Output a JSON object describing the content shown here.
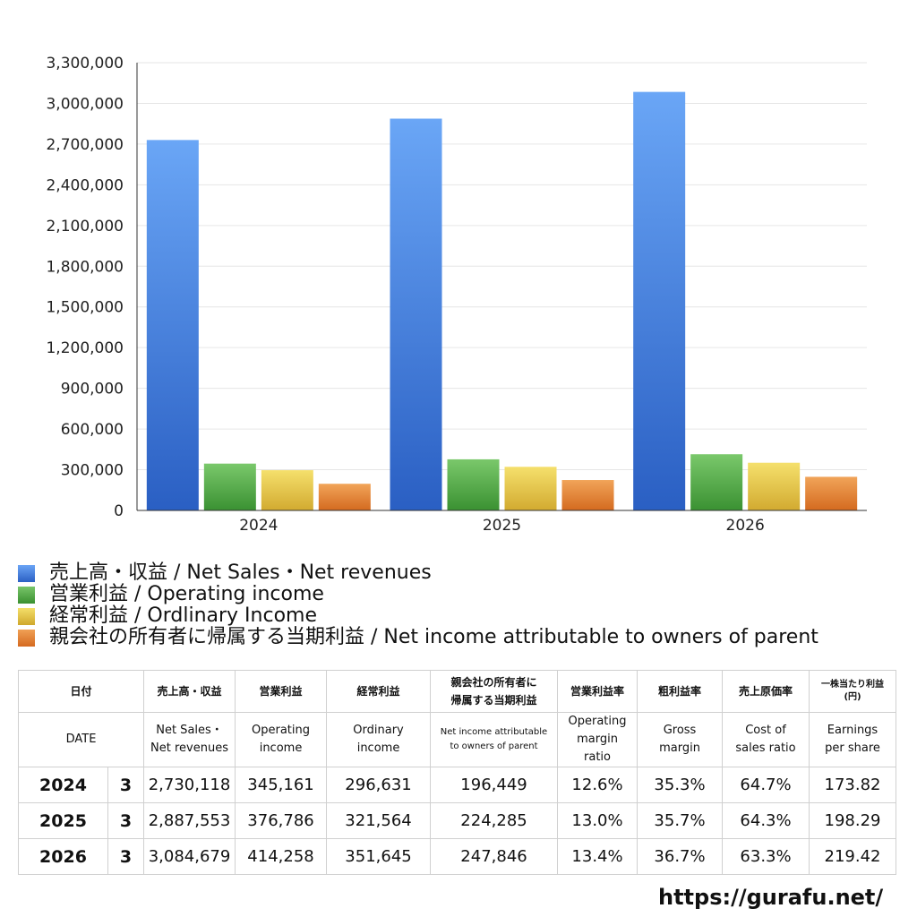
{
  "chart_data": {
    "type": "bar",
    "categories": [
      "2024",
      "2025",
      "2026"
    ],
    "y_ticks": [
      "3,300,000",
      "3,000,000",
      "2,700,000",
      "2,400,000",
      "2,100,000",
      "1,800,000",
      "1,500,000",
      "1,200,000",
      "900,000",
      "600,000",
      "300,000",
      "0"
    ],
    "ylim": [
      0,
      3300000
    ],
    "grid": true,
    "legend_position": "bottom",
    "series": [
      {
        "name": "売上高・収益 / Net Sales・Net revenues",
        "color": "#3a78e0",
        "values": [
          2730118,
          2887553,
          3084679
        ]
      },
      {
        "name": "営業利益 / Operating income",
        "color": "#4aa63e",
        "values": [
          345161,
          376786,
          414258
        ]
      },
      {
        "name": "経常利益 / Ordlinary Income",
        "color": "#e4c53a",
        "values": [
          296631,
          321564,
          351645
        ]
      },
      {
        "name": "親会社の所有者に帰属する当期利益 / Net income attributable to owners of parent",
        "color": "#e27b2e",
        "values": [
          196449,
          224285,
          247846
        ]
      }
    ]
  },
  "table": {
    "header_jp": {
      "date": "日付",
      "sales": "売上高・収益",
      "operating": "営業利益",
      "ordinary": "経常利益",
      "net_line1": "親会社の所有者に",
      "net_line2": "帰属する当期利益",
      "op_margin": "営業利益率",
      "gross": "粗利益率",
      "cost": "売上原価率",
      "eps_line1": "一株当たり利益",
      "eps_line2": "(円)"
    },
    "header_en": {
      "date": "DATE",
      "sales_line1": "Net Sales・",
      "sales_line2": "Net revenues",
      "operating_line1": "Operating",
      "operating_line2": "income",
      "ordinary_line1": "Ordinary",
      "ordinary_line2": "income",
      "net_line1": "Net income attributable",
      "net_line2": "to owners of parent",
      "op_margin_line1": "Operating",
      "op_margin_line2": "margin",
      "op_margin_line3": "ratio",
      "gross_line1": "Gross",
      "gross_line2": "margin",
      "cost_line1": "Cost of",
      "cost_line2": "sales ratio",
      "eps_line1": "Earnings",
      "eps_line2": "per share"
    },
    "rows": [
      {
        "year": "2024",
        "month": "3",
        "sales": "2,730,118",
        "operating": "345,161",
        "ordinary": "296,631",
        "net": "196,449",
        "op_margin": "12.6%",
        "gross": "35.3%",
        "cost": "64.7%",
        "eps": "173.82"
      },
      {
        "year": "2025",
        "month": "3",
        "sales": "2,887,553",
        "operating": "376,786",
        "ordinary": "321,564",
        "net": "224,285",
        "op_margin": "13.0%",
        "gross": "35.7%",
        "cost": "64.3%",
        "eps": "198.29"
      },
      {
        "year": "2026",
        "month": "3",
        "sales": "3,084,679",
        "operating": "414,258",
        "ordinary": "351,645",
        "net": "247,846",
        "op_margin": "13.4%",
        "gross": "36.7%",
        "cost": "63.3%",
        "eps": "219.42"
      }
    ]
  },
  "footer": {
    "url": "https://gurafu.net/"
  }
}
